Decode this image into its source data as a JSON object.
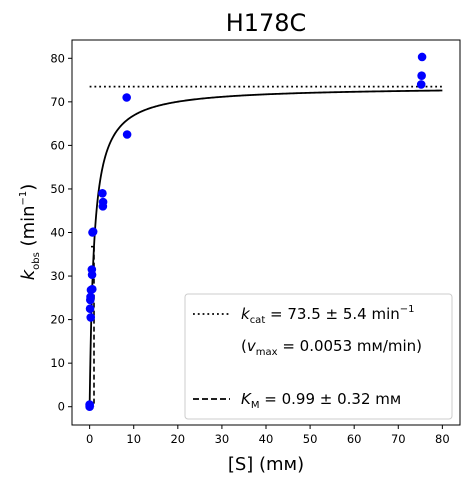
{
  "chart_data": {
    "type": "scatter",
    "title": "H178C",
    "xlabel": "[S] (mM)",
    "ylabel": "k_obs (min^-1)",
    "xlim": [
      -4,
      84
    ],
    "ylim": [
      -4.2,
      84.2
    ],
    "x_ticks": [
      0,
      10,
      20,
      30,
      40,
      50,
      60,
      70,
      80
    ],
    "y_ticks": [
      0,
      10,
      20,
      30,
      40,
      50,
      60,
      70,
      80
    ],
    "grid": false,
    "legend_position": "lower-right",
    "series": [
      {
        "kind": "points",
        "color": "#0000ff",
        "x": [
          0,
          0,
          0,
          0.1,
          0.15,
          0.2,
          0.25,
          0.3,
          0.5,
          0.55,
          0.6,
          0.65,
          0.8,
          2.9,
          3.0,
          3.05,
          8.4,
          8.5,
          75.2,
          75.3,
          75.4
        ],
        "y": [
          0,
          0.3,
          0.5,
          22.5,
          24.5,
          25.2,
          20.5,
          26.8,
          31.5,
          30.3,
          27.0,
          40.0,
          40.2,
          49.0,
          46.0,
          47.0,
          71.0,
          62.5,
          74.0,
          76.0,
          80.3
        ]
      },
      {
        "kind": "fit",
        "color": "#000000",
        "linestyle": "solid",
        "equation": "y = kcat*x/(KM+x)",
        "kcat": 73.5,
        "KM": 0.99,
        "x_range": [
          0,
          80
        ]
      },
      {
        "kind": "hline",
        "color": "#000000",
        "linestyle": "dotted",
        "y": 73.5,
        "x_range": [
          0,
          80
        ]
      },
      {
        "kind": "km-marker",
        "color": "#000000",
        "linestyle": "dashed",
        "x": 0.99,
        "y_half": 36.75
      }
    ],
    "legend": [
      {
        "style": "dotted",
        "symbol": "k",
        "subscript": "cat",
        "text": " = 73.5 ± 5.4 min",
        "superscript": "−1",
        "line2_open": "(",
        "line2_symbol": "v",
        "line2_subscript": "max",
        "line2_text": " = 0.0053 mM/min)"
      },
      {
        "style": "dashed",
        "symbol": "K",
        "subscript": "M",
        "text": " = 0.99 ± 0.32 mM"
      }
    ]
  },
  "labels": {
    "x_label": "[S] (mᴍ)",
    "y_symbol": "k",
    "y_subscript": "obs",
    "y_unit_open": " (min",
    "y_unit_sup": "−1",
    "y_unit_close": ")",
    "legend_unit_display": "mᴍ"
  }
}
